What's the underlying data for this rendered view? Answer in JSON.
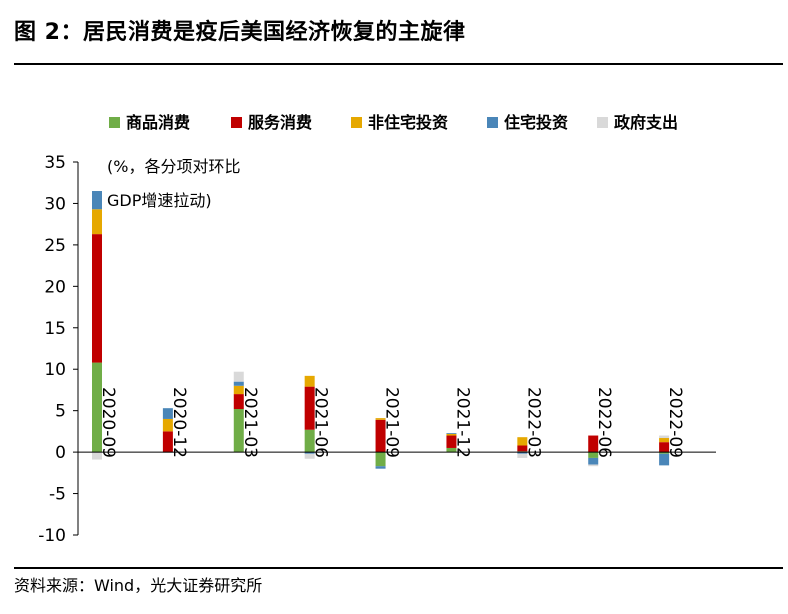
{
  "header": {
    "title": "图 2：居民消费是疫后美国经济恢复的主旋律"
  },
  "footer": {
    "source": "资料来源：Wind，光大证券研究所"
  },
  "chart_data": {
    "type": "bar",
    "stacked": true,
    "title": "",
    "ylabel": "",
    "xlabel": "",
    "unit_note_line1": "(%，各分项对环比",
    "unit_note_line2": "GDP增速拉动)",
    "ylim": [
      -10,
      35
    ],
    "yticks": [
      -10,
      -5,
      0,
      5,
      10,
      15,
      20,
      25,
      30,
      35
    ],
    "categories": [
      "2020-09",
      "2020-12",
      "2021-03",
      "2021-06",
      "2021-09",
      "2021-12",
      "2022-03",
      "2022-06",
      "2022-09"
    ],
    "legend_position": "top",
    "series": [
      {
        "name": "商品消费",
        "color": "#70ad47",
        "values": [
          10.8,
          0.0,
          5.2,
          2.7,
          -1.7,
          0.5,
          0.1,
          -0.7,
          -0.2
        ]
      },
      {
        "name": "服务消费",
        "color": "#c00000",
        "values": [
          15.5,
          2.5,
          1.8,
          5.2,
          3.9,
          1.5,
          0.7,
          2.0,
          1.2
        ]
      },
      {
        "name": "非住宅投资",
        "color": "#e6a800",
        "values": [
          3.0,
          1.5,
          1.0,
          1.3,
          0.2,
          0.2,
          1.0,
          0.0,
          0.5
        ]
      },
      {
        "name": "住宅投资",
        "color": "#4a86b8",
        "values": [
          2.2,
          1.3,
          0.5,
          -0.2,
          -0.3,
          0.1,
          -0.2,
          -0.8,
          -1.4
        ]
      },
      {
        "name": "政府支出",
        "color": "#d9d9d9",
        "values": [
          -0.9,
          -0.1,
          1.2,
          -0.6,
          0.0,
          0.0,
          -0.5,
          -0.2,
          0.3
        ]
      }
    ]
  }
}
